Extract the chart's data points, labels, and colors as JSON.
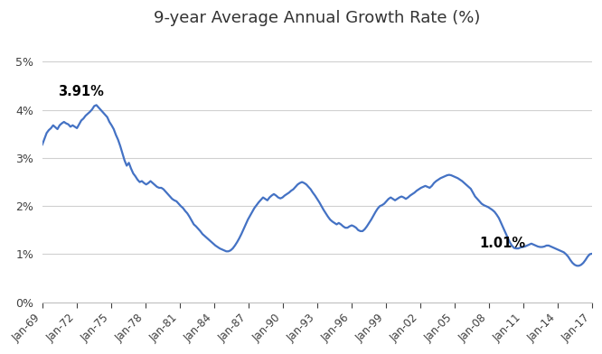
{
  "title": "9-year Average Annual Growth Rate (%)",
  "line_color": "#4472C4",
  "line_width": 1.6,
  "background_color": "#ffffff",
  "ylim": [
    0,
    0.055
  ],
  "yticks": [
    0.0,
    0.01,
    0.02,
    0.03,
    0.04,
    0.05
  ],
  "ytick_labels": [
    "0%",
    "1%",
    "2%",
    "3%",
    "4%",
    "5%"
  ],
  "annotation_1_text": "3.91%",
  "annotation_2_text": "1.01%",
  "xtick_labels": [
    "Jan-69",
    "Jan-72",
    "Jan-75",
    "Jan-78",
    "Jan-81",
    "Jan-84",
    "Jan-87",
    "Jan-90",
    "Jan-93",
    "Jan-96",
    "Jan-99",
    "Jan-02",
    "Jan-05",
    "Jan-08",
    "Jan-11",
    "Jan-14",
    "Jan-17"
  ],
  "values": [
    0.0328,
    0.034,
    0.0352,
    0.0358,
    0.0362,
    0.0368,
    0.0364,
    0.036,
    0.0368,
    0.0372,
    0.0375,
    0.0372,
    0.037,
    0.0365,
    0.0368,
    0.0365,
    0.0362,
    0.037,
    0.0378,
    0.0382,
    0.0388,
    0.0392,
    0.0396,
    0.0401,
    0.0408,
    0.041,
    0.0405,
    0.04,
    0.0395,
    0.039,
    0.0385,
    0.0375,
    0.0368,
    0.036,
    0.0348,
    0.0338,
    0.0325,
    0.031,
    0.0295,
    0.0284,
    0.029,
    0.0278,
    0.0268,
    0.0262,
    0.0255,
    0.025,
    0.0252,
    0.0248,
    0.0245,
    0.0248,
    0.0252,
    0.0248,
    0.0244,
    0.024,
    0.0238,
    0.0238,
    0.0235,
    0.023,
    0.0225,
    0.022,
    0.0215,
    0.0212,
    0.021,
    0.0205,
    0.02,
    0.0196,
    0.019,
    0.0185,
    0.0178,
    0.017,
    0.0162,
    0.0158,
    0.0153,
    0.0148,
    0.0142,
    0.0138,
    0.0134,
    0.013,
    0.0126,
    0.0122,
    0.0118,
    0.0115,
    0.0112,
    0.011,
    0.0108,
    0.0106,
    0.0106,
    0.0108,
    0.0112,
    0.0118,
    0.0125,
    0.0133,
    0.0142,
    0.0152,
    0.0162,
    0.0172,
    0.018,
    0.0188,
    0.0196,
    0.0202,
    0.0208,
    0.0213,
    0.0218,
    0.0215,
    0.0212,
    0.0218,
    0.0222,
    0.0225,
    0.0222,
    0.0218,
    0.0216,
    0.0218,
    0.0222,
    0.0225,
    0.0228,
    0.0232,
    0.0235,
    0.024,
    0.0245,
    0.0248,
    0.025,
    0.0248,
    0.0245,
    0.024,
    0.0235,
    0.0228,
    0.0222,
    0.0215,
    0.0208,
    0.02,
    0.0192,
    0.0185,
    0.0178,
    0.0172,
    0.0168,
    0.0165,
    0.0162,
    0.0165,
    0.0162,
    0.0158,
    0.0155,
    0.0155,
    0.0158,
    0.016,
    0.0158,
    0.0155,
    0.015,
    0.0148,
    0.0148,
    0.0152,
    0.0158,
    0.0165,
    0.0172,
    0.018,
    0.0188,
    0.0195,
    0.02,
    0.0202,
    0.0205,
    0.021,
    0.0215,
    0.0218,
    0.0215,
    0.0212,
    0.0215,
    0.0218,
    0.022,
    0.0218,
    0.0215,
    0.0218,
    0.0222,
    0.0225,
    0.0228,
    0.0232,
    0.0235,
    0.0238,
    0.024,
    0.0242,
    0.024,
    0.0238,
    0.0242,
    0.0248,
    0.0252,
    0.0255,
    0.0258,
    0.026,
    0.0262,
    0.0264,
    0.0265,
    0.0264,
    0.0262,
    0.026,
    0.0258,
    0.0255,
    0.0252,
    0.0248,
    0.0244,
    0.024,
    0.0236,
    0.0228,
    0.022,
    0.0215,
    0.021,
    0.0205,
    0.0202,
    0.02,
    0.0198,
    0.0195,
    0.0192,
    0.0188,
    0.0182,
    0.0175,
    0.0165,
    0.0155,
    0.0145,
    0.0135,
    0.0125,
    0.0118,
    0.0113,
    0.0112,
    0.0112,
    0.0114,
    0.0115,
    0.0116,
    0.0118,
    0.012,
    0.0122,
    0.012,
    0.0118,
    0.0116,
    0.0115,
    0.0115,
    0.0116,
    0.0118,
    0.0118,
    0.0116,
    0.0114,
    0.0112,
    0.011,
    0.0108,
    0.0106,
    0.0104,
    0.01,
    0.0095,
    0.0088,
    0.0082,
    0.0078,
    0.0076,
    0.0076,
    0.0078,
    0.0082,
    0.0088,
    0.0095,
    0.01,
    0.0101
  ]
}
